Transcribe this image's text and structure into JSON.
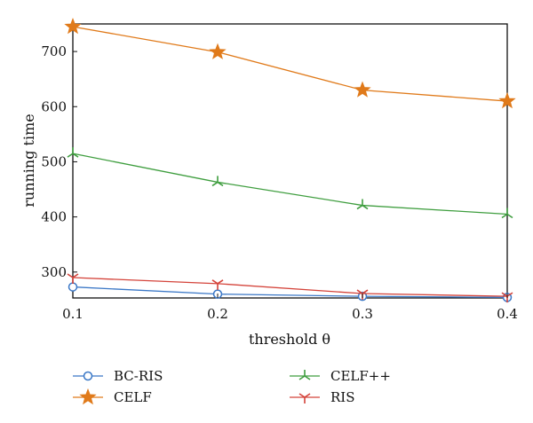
{
  "chart_data": {
    "type": "line",
    "title": "",
    "xlabel": "threshold θ",
    "ylabel": "running time",
    "x": [
      0.1,
      0.2,
      0.3,
      0.4
    ],
    "x_tick_labels": [
      "0.1",
      "0.2",
      "0.3",
      "0.4"
    ],
    "y_ticks": [
      300,
      400,
      500,
      600,
      700
    ],
    "y_tick_labels": [
      "300",
      "400",
      "500",
      "600",
      "700"
    ],
    "xlim": [
      0.1,
      0.4
    ],
    "ylim": [
      253,
      750
    ],
    "grid": false,
    "legend_position": "bottom",
    "series": [
      {
        "name": "BC-RIS",
        "values": [
          273,
          260,
          256,
          254
        ],
        "color": "#3a77c6",
        "marker": "circle"
      },
      {
        "name": "CELF",
        "values": [
          745,
          699,
          630,
          610
        ],
        "color": "#e07a1a",
        "marker": "star"
      },
      {
        "name": "CELF++",
        "values": [
          515,
          463,
          421,
          405
        ],
        "color": "#3f9e3f",
        "marker": "tri-tick"
      },
      {
        "name": "RIS",
        "values": [
          290,
          279,
          261,
          256
        ],
        "color": "#d4433a",
        "marker": "tri-y"
      }
    ]
  }
}
